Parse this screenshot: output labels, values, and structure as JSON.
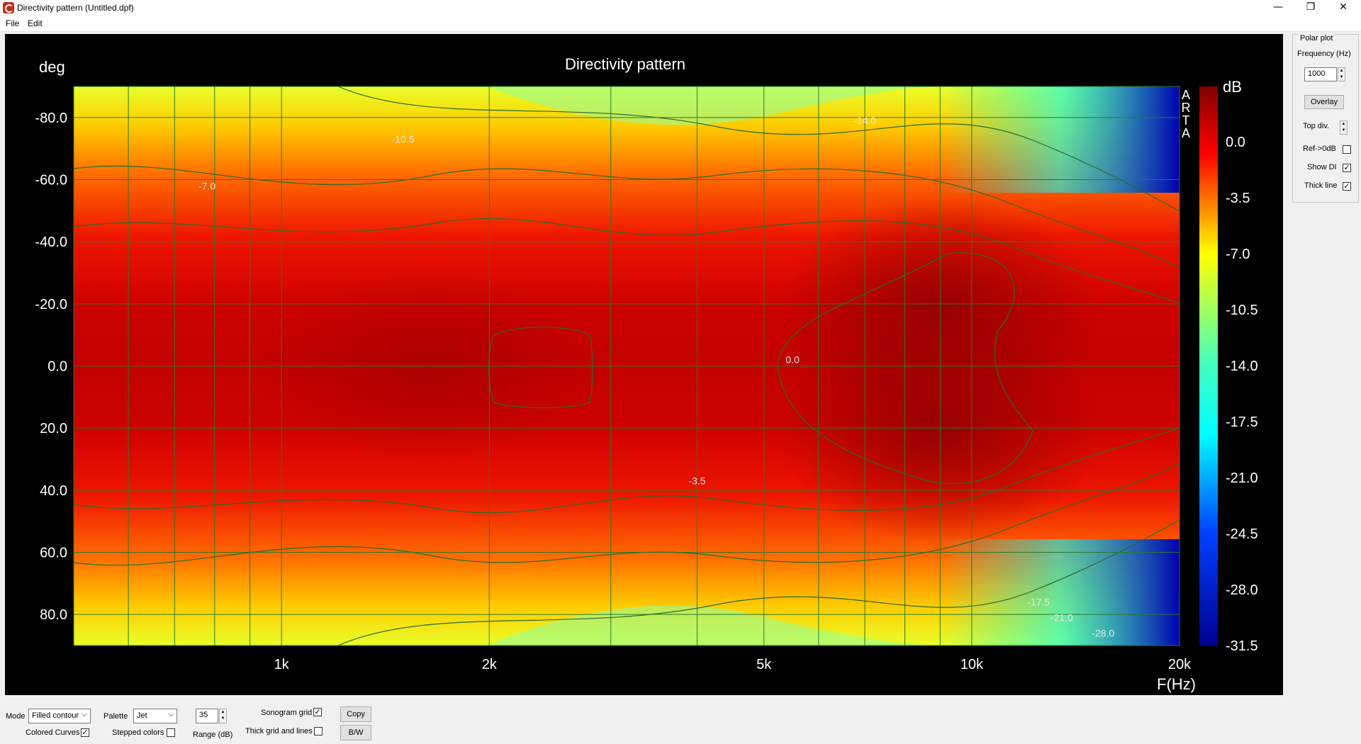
{
  "window": {
    "title": "Directivity pattern (Untitled.dpf)",
    "controls": [
      "—",
      "❐",
      "✕"
    ]
  },
  "menu": {
    "items": [
      "File",
      "Edit"
    ]
  },
  "chart_data": {
    "type": "heatmap",
    "title": "Directivity pattern",
    "ylabel": "deg",
    "xlabel": "F(Hz)",
    "x_scale": "log",
    "xlim": [
      500,
      20000
    ],
    "ylim": [
      -90,
      90
    ],
    "y_ticks": [
      -80,
      -60,
      -40,
      -20,
      0,
      20,
      40,
      60,
      80
    ],
    "y_tick_labels": [
      "-80.0",
      "-60.0",
      "-40.0",
      "-20.0",
      "0.0",
      "20.0",
      "40.0",
      "60.0",
      "80.0"
    ],
    "x_ticks": [
      1000,
      2000,
      5000,
      10000,
      20000
    ],
    "x_tick_labels": [
      "1k",
      "2k",
      "5k",
      "10k",
      "20k"
    ],
    "colorbar": {
      "label": "dB",
      "range": [
        -31.5,
        3.5
      ],
      "ticks": [
        "0.0",
        "-3.5",
        "-7.0",
        "-10.5",
        "-14.0",
        "-17.5",
        "-21.0",
        "-24.5",
        "-28.0",
        "-31.5"
      ],
      "palette": "Jet"
    },
    "contour_labels": [
      {
        "text": "-7.0",
        "f": 780,
        "deg": -58
      },
      {
        "text": "-10.5",
        "f": 1500,
        "deg": -73
      },
      {
        "text": "-14.0",
        "f": 7000,
        "deg": -79
      },
      {
        "text": "0.0",
        "f": 5500,
        "deg": -2
      },
      {
        "text": "-3.5",
        "f": 4000,
        "deg": 37
      },
      {
        "text": "-17.5",
        "f": 12500,
        "deg": 76
      },
      {
        "text": "-21.0",
        "f": 13500,
        "deg": 81
      },
      {
        "text": "-28.0",
        "f": 15500,
        "deg": 86
      }
    ],
    "watermark": "ARTA",
    "grid": true
  },
  "polar_panel": {
    "title": "Polar plot",
    "frequency_label": "Frequency (Hz)",
    "frequency_value": "1000",
    "overlay_label": "Overlay",
    "top_div_label": "Top div.",
    "ref_label": "Ref->0dB",
    "ref_checked": false,
    "show_di_label": "Show DI",
    "show_di_checked": true,
    "thick_line_label": "Thick line",
    "thick_line_checked": true
  },
  "toolbar": {
    "mode_label": "Mode",
    "mode_value": "Filled contour",
    "palette_label": "Palette",
    "palette_value": "Jet",
    "range_value": "35",
    "range_label": "Range (dB)",
    "sonogram_grid_label": "Sonogram grid",
    "sonogram_grid_checked": true,
    "thick_grid_label": "Thick grid and  lines",
    "thick_grid_checked": false,
    "colored_curves_label": "Colored Curves",
    "colored_curves_checked": true,
    "stepped_colors_label": "Stepped colors",
    "stepped_colors_checked": false,
    "copy_label": "Copy",
    "bw_label": "B/W"
  }
}
